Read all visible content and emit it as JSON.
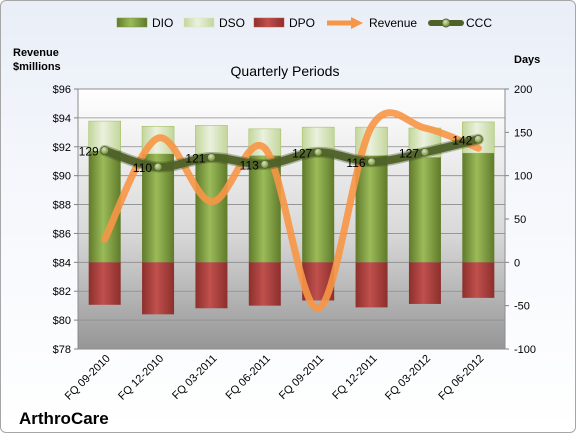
{
  "company": "ArthroCare",
  "chart_data": {
    "type": "bar+line",
    "title": "Quarterly Periods",
    "categories": [
      "FQ 09-2010",
      "FQ 12-2010",
      "FQ 03-2011",
      "FQ 06-2011",
      "FQ 09-2011",
      "FQ 12-2011",
      "FQ 03-2012",
      "FQ 06-2012"
    ],
    "left_axis": {
      "label_line1": "Revenue",
      "label_line2": "$millions",
      "min": 78,
      "max": 96,
      "step": 2,
      "tick_labels": [
        "$78",
        "$80",
        "$82",
        "$84",
        "$86",
        "$88",
        "$90",
        "$92",
        "$94",
        "$96"
      ]
    },
    "right_axis": {
      "label": "Days",
      "min": -100,
      "max": 200,
      "step": 50,
      "tick_labels": [
        "-100",
        "-50",
        "0",
        "50",
        "100",
        "150",
        "200"
      ]
    },
    "series": [
      {
        "name": "DIO",
        "type": "bar",
        "axis": "right",
        "color": "#77933c",
        "values": [
          128,
          125,
          124,
          123,
          125,
          123,
          121,
          126
        ]
      },
      {
        "name": "DSO",
        "type": "bar",
        "axis": "right",
        "color": "#d7e4bd",
        "values": [
          35,
          32,
          34,
          31,
          31,
          33,
          34,
          36
        ]
      },
      {
        "name": "DPO",
        "type": "bar",
        "axis": "right",
        "color": "#c0504d",
        "values": [
          -49,
          -60,
          -53,
          -50,
          -44,
          -52,
          -48,
          -41
        ]
      },
      {
        "name": "Revenue",
        "type": "line",
        "axis": "left",
        "color": "#f79646",
        "values": [
          85.6,
          92.6,
          88.2,
          91.9,
          80.8,
          93.4,
          93.3,
          91.9
        ]
      },
      {
        "name": "CCC",
        "type": "line",
        "axis": "right",
        "color": "#4f6228",
        "values": [
          129,
          110,
          121,
          113,
          127,
          116,
          127,
          142
        ]
      }
    ],
    "data_labels": [
      "129",
      "110",
      "121",
      "113",
      "127",
      "116",
      "127",
      "142"
    ],
    "legend": [
      "DIO",
      "DSO",
      "DPO",
      "Revenue",
      "CCC"
    ],
    "legend_position": "top"
  }
}
